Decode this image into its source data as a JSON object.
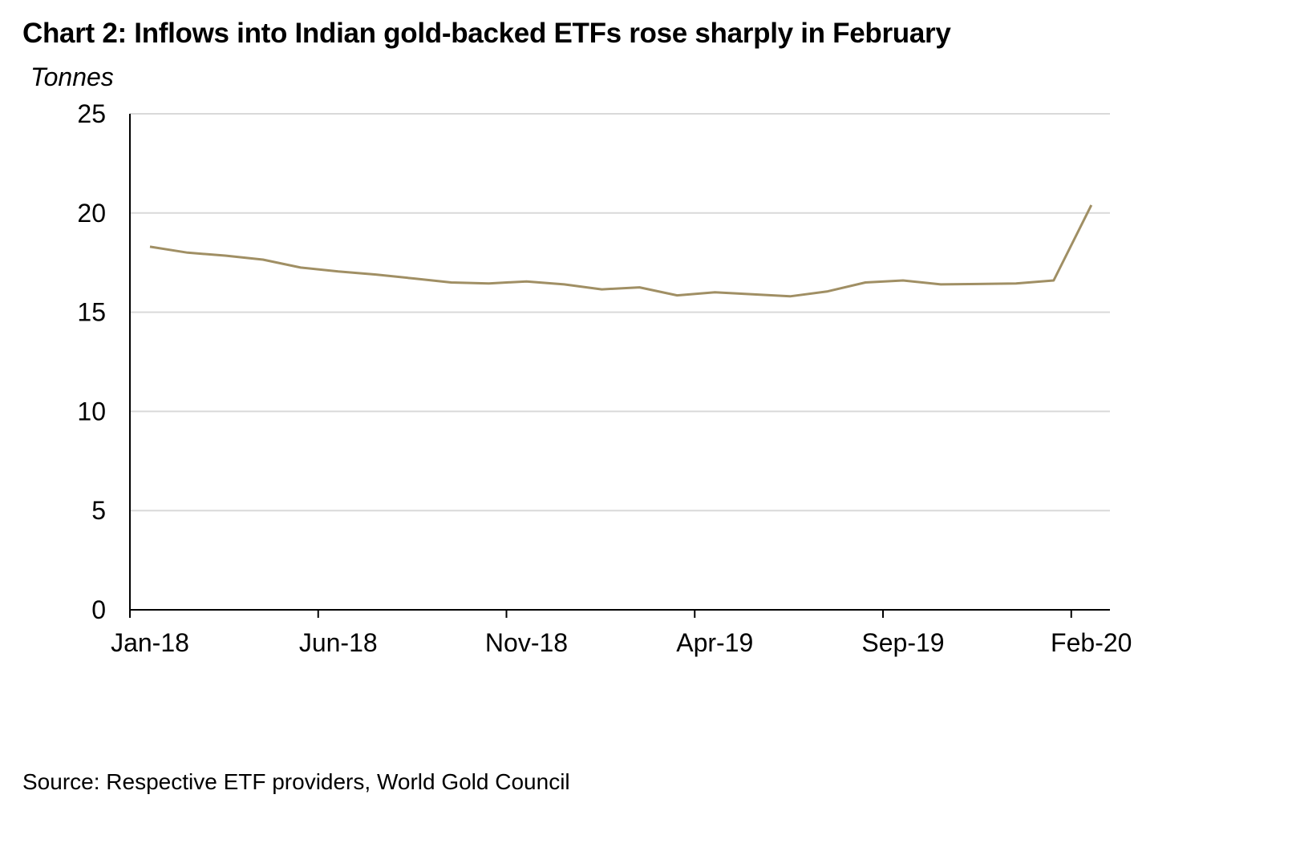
{
  "chart_data": {
    "type": "line",
    "title": "Chart 2: Inflows into Indian gold-backed ETFs rose sharply in February",
    "ylabel": "Tonnes",
    "xlabel": "",
    "ylim": [
      0,
      25
    ],
    "yticks": [
      0,
      5,
      10,
      15,
      20,
      25
    ],
    "grid": true,
    "legend": "none",
    "x": [
      "Jan-18",
      "Feb-18",
      "Mar-18",
      "Apr-18",
      "May-18",
      "Jun-18",
      "Jul-18",
      "Aug-18",
      "Sep-18",
      "Oct-18",
      "Nov-18",
      "Dec-18",
      "Jan-19",
      "Feb-19",
      "Mar-19",
      "Apr-19",
      "May-19",
      "Jun-19",
      "Jul-19",
      "Aug-19",
      "Sep-19",
      "Oct-19",
      "Nov-19",
      "Dec-19",
      "Jan-20",
      "Feb-20"
    ],
    "xtick_labels": [
      "Jan-18",
      "Jun-18",
      "Nov-18",
      "Apr-19",
      "Sep-19",
      "Feb-20"
    ],
    "series": [
      {
        "name": "Indian gold-backed ETF holdings",
        "color": "#A08F64",
        "values": [
          18.3,
          18.0,
          17.85,
          17.65,
          17.25,
          17.05,
          16.9,
          16.7,
          16.5,
          16.45,
          16.55,
          16.4,
          16.15,
          16.25,
          15.85,
          16.0,
          15.9,
          15.8,
          16.05,
          16.5,
          16.6,
          16.4,
          16.42,
          16.45,
          16.6,
          20.4
        ]
      }
    ],
    "source": "Source: Respective ETF providers, World Gold Council"
  },
  "colors": {
    "gridline": "#D9D9D9",
    "axis": "#000000",
    "line": "#A08F64"
  }
}
